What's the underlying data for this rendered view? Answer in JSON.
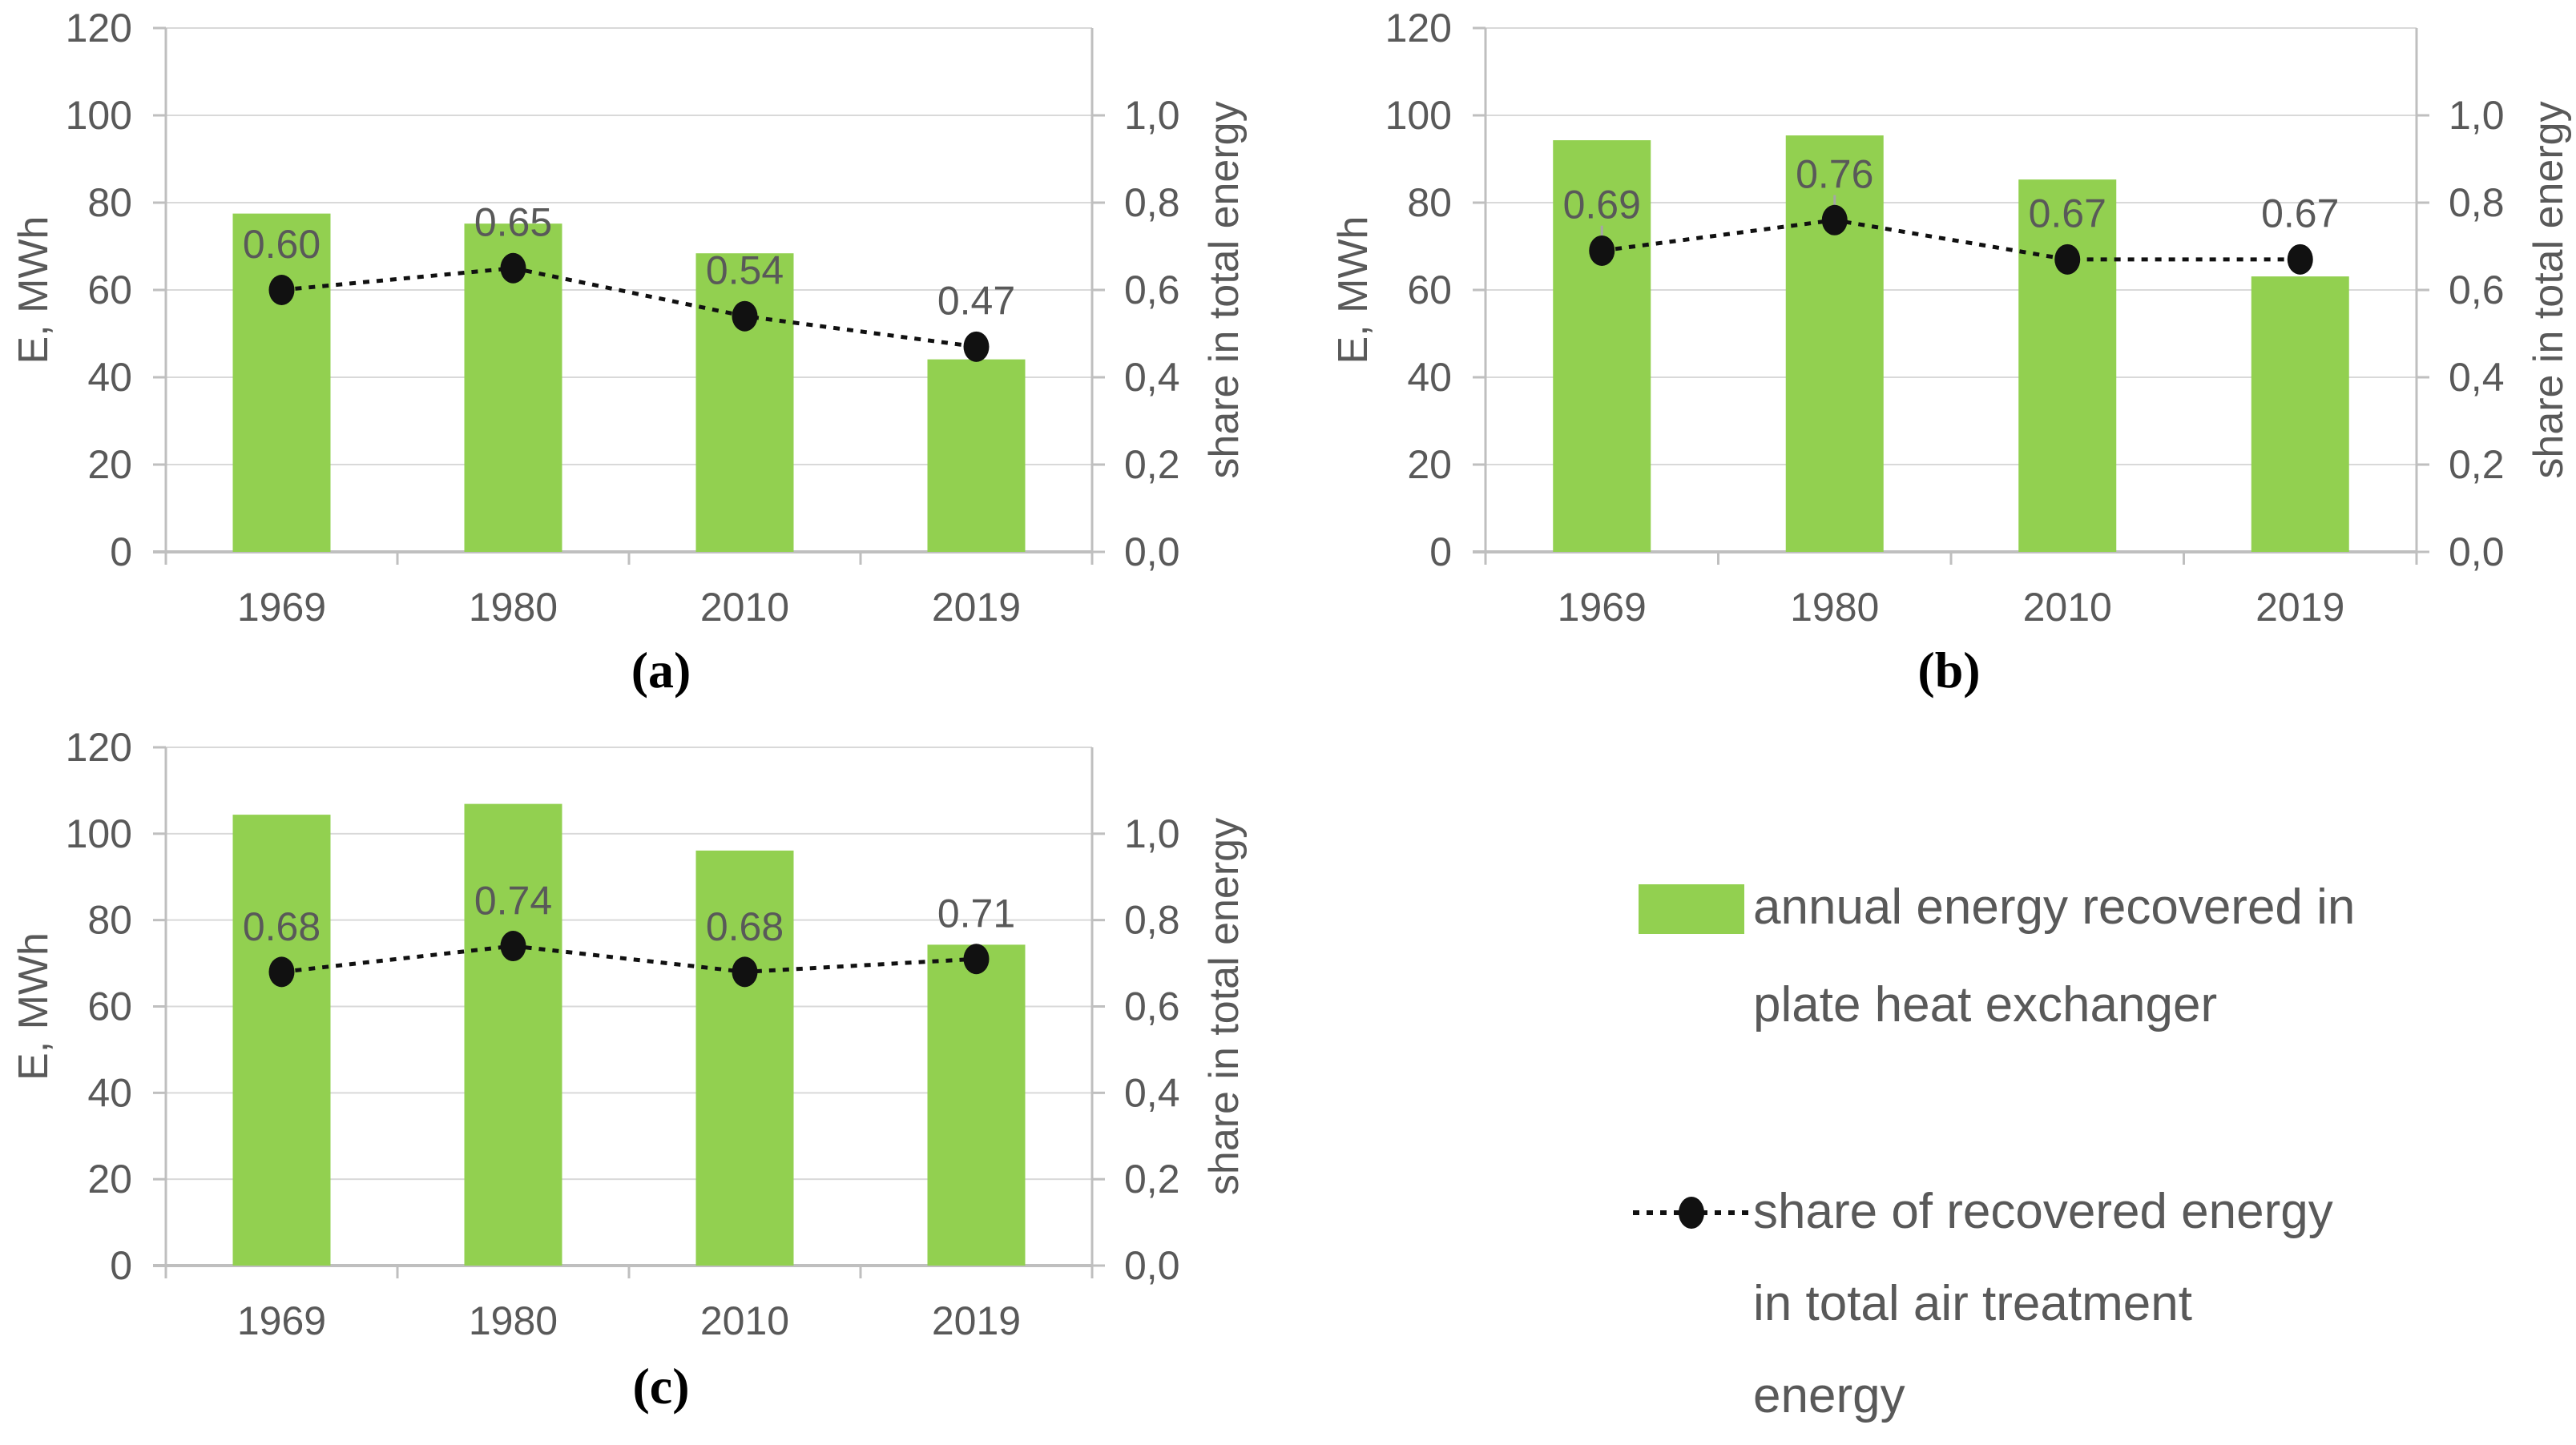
{
  "figure": {
    "captions": {
      "a": "(a)",
      "b": "(b)",
      "c": "(c)"
    }
  },
  "colors": {
    "bar_green": "#92d050",
    "grid": "#d9d9d9",
    "axis_line": "#bfbfbf",
    "text_gray": "#595959",
    "line_black": "#111111",
    "leader_gray": "#a6a6a6"
  },
  "legend": {
    "items": [
      {
        "icon": "bar-swatch",
        "lines": [
          "annual energy recovered in",
          "plate heat exchanger"
        ]
      },
      {
        "icon": "dotted-line-marker",
        "lines": [
          "share of recovered energy",
          "in total air treatment",
          "energy"
        ]
      }
    ]
  },
  "chart_data": [
    {
      "type": "bar+line",
      "panel": "a",
      "categories": [
        "1969",
        "1980",
        "2010",
        "2019"
      ],
      "series": [
        {
          "name": "annual energy recovered in plate heat exchanger",
          "type": "bar",
          "axis": "left",
          "values": [
            77.5,
            75.2,
            68.4,
            44.1
          ]
        },
        {
          "name": "share of recovered energy in total air treatment energy",
          "type": "line",
          "axis": "right",
          "values": [
            0.6,
            0.65,
            0.54,
            0.47
          ]
        }
      ],
      "data_labels": [
        "0.60",
        "0.65",
        "0.54",
        "0.47"
      ],
      "label_leaders": [
        false,
        false,
        false,
        false
      ],
      "left_axis": {
        "title": "E, MWh",
        "min": 0,
        "max": 120,
        "step": 20,
        "tick_labels": [
          "0",
          "20",
          "40",
          "60",
          "80",
          "100",
          "120"
        ]
      },
      "right_axis": {
        "title": "share in total energy",
        "min": 0.0,
        "max": 1.2,
        "step": 0.2,
        "tick_labels": [
          "0,0",
          "0,2",
          "0,4",
          "0,6",
          "0,8",
          "1,0"
        ]
      },
      "grid": true,
      "legend_position": "none"
    },
    {
      "type": "bar+line",
      "panel": "b",
      "categories": [
        "1969",
        "1980",
        "2010",
        "2019"
      ],
      "series": [
        {
          "name": "annual energy recovered in plate heat exchanger",
          "type": "bar",
          "axis": "left",
          "values": [
            94.3,
            95.4,
            85.3,
            63.1
          ]
        },
        {
          "name": "share of recovered energy in total air treatment energy",
          "type": "line",
          "axis": "right",
          "values": [
            0.69,
            0.76,
            0.67,
            0.67
          ]
        }
      ],
      "data_labels": [
        "0.69",
        "0.76",
        "0.67",
        "0.67"
      ],
      "label_leaders": [
        true,
        true,
        false,
        false
      ],
      "left_axis": {
        "title": "E, MWh",
        "min": 0,
        "max": 120,
        "step": 20,
        "tick_labels": [
          "0",
          "20",
          "40",
          "60",
          "80",
          "100",
          "120"
        ]
      },
      "right_axis": {
        "title": "share in total energy",
        "min": 0.0,
        "max": 1.2,
        "step": 0.2,
        "tick_labels": [
          "0,0",
          "0,2",
          "0,4",
          "0,6",
          "0,8",
          "1,0"
        ]
      },
      "grid": true,
      "legend_position": "none"
    },
    {
      "type": "bar+line",
      "panel": "c",
      "categories": [
        "1969",
        "1980",
        "2010",
        "2019"
      ],
      "series": [
        {
          "name": "annual energy recovered in plate heat exchanger",
          "type": "bar",
          "axis": "left",
          "values": [
            104.4,
            106.9,
            96.1,
            74.3
          ]
        },
        {
          "name": "share of recovered energy in total air treatment energy",
          "type": "line",
          "axis": "right",
          "values": [
            0.68,
            0.74,
            0.68,
            0.71
          ]
        }
      ],
      "data_labels": [
        "0.68",
        "0.74",
        "0.68",
        "0.71"
      ],
      "label_leaders": [
        false,
        false,
        false,
        false
      ],
      "left_axis": {
        "title": "E, MWh",
        "min": 0,
        "max": 120,
        "step": 20,
        "tick_labels": [
          "0",
          "20",
          "40",
          "60",
          "80",
          "100",
          "120"
        ]
      },
      "right_axis": {
        "title": "share in total energy",
        "min": 0.0,
        "max": 1.2,
        "step": 0.2,
        "tick_labels": [
          "0,0",
          "0,2",
          "0,4",
          "0,6",
          "0,8",
          "1,0"
        ]
      },
      "grid": true,
      "legend_position": "none"
    }
  ]
}
